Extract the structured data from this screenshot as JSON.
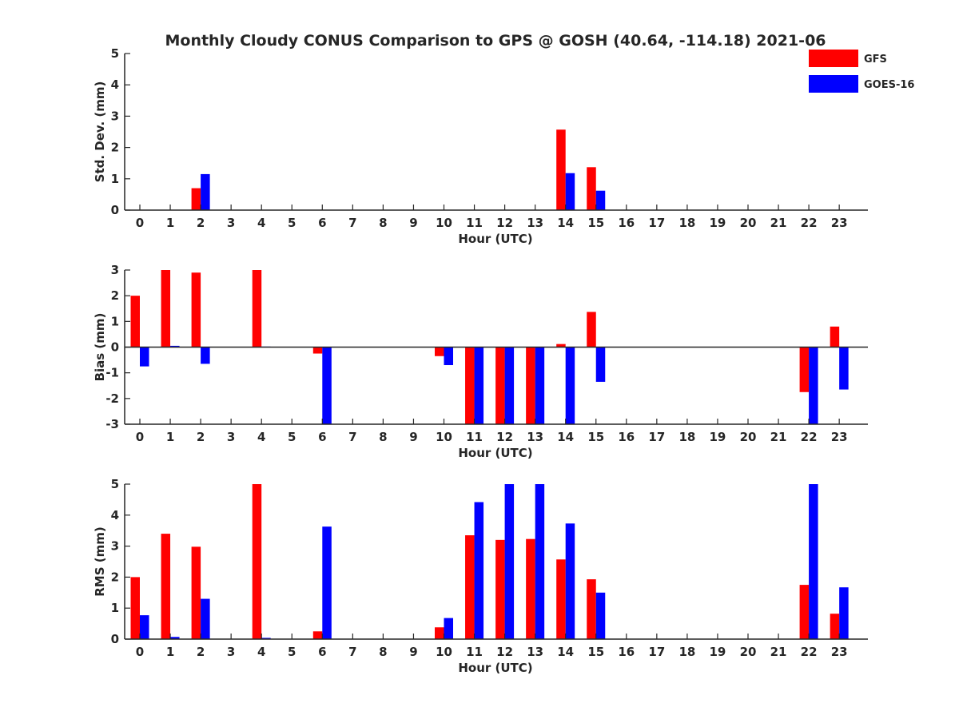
{
  "title": "Monthly Cloudy CONUS Comparison to GPS @ GOSH (40.64, -114.18) 2021-06",
  "colors": {
    "GFS": "#ff0000",
    "GOES-16": "#0000ff",
    "axis": "#262626"
  },
  "legend": {
    "placement": "top-right",
    "entries": [
      "GFS",
      "GOES-16"
    ]
  },
  "chart_data": [
    {
      "type": "bar",
      "ylabel": "Std. Dev. (mm)",
      "xlabel": "Hour (UTC)",
      "ylim": [
        0,
        5
      ],
      "yticks": [
        0,
        1,
        2,
        3,
        4,
        5
      ],
      "categories": [
        "0",
        "1",
        "2",
        "3",
        "4",
        "5",
        "6",
        "7",
        "8",
        "9",
        "10",
        "11",
        "12",
        "13",
        "14",
        "15",
        "16",
        "17",
        "18",
        "19",
        "20",
        "21",
        "22",
        "23"
      ],
      "series": [
        {
          "name": "GFS",
          "values": [
            0,
            0,
            0.7,
            0,
            0,
            0,
            0,
            0,
            0,
            0,
            0,
            0,
            0,
            0,
            2.57,
            1.37,
            0,
            0,
            0,
            0,
            0,
            0,
            0,
            0
          ]
        },
        {
          "name": "GOES-16",
          "values": [
            0,
            0,
            1.15,
            0,
            0,
            0,
            0,
            0,
            0,
            0,
            0,
            0,
            0,
            0,
            1.18,
            0.62,
            0,
            0,
            0,
            0,
            0,
            0,
            0,
            0
          ]
        }
      ]
    },
    {
      "type": "bar",
      "ylabel": "Bias (mm)",
      "xlabel": "Hour (UTC)",
      "ylim": [
        -3,
        3
      ],
      "yticks": [
        -3,
        -2,
        -1,
        0,
        1,
        2,
        3
      ],
      "categories": [
        "0",
        "1",
        "2",
        "3",
        "4",
        "5",
        "6",
        "7",
        "8",
        "9",
        "10",
        "11",
        "12",
        "13",
        "14",
        "15",
        "16",
        "17",
        "18",
        "19",
        "20",
        "21",
        "22",
        "23"
      ],
      "series": [
        {
          "name": "GFS",
          "values": [
            2.0,
            3.0,
            2.9,
            0,
            3.0,
            0,
            -0.25,
            0,
            0,
            0,
            -0.35,
            -3.0,
            -3.0,
            -3.0,
            0.12,
            1.37,
            0,
            0,
            0,
            0,
            0,
            0,
            -1.75,
            0.8
          ]
        },
        {
          "name": "GOES-16",
          "values": [
            -0.75,
            0.05,
            -0.65,
            0,
            0.02,
            0,
            -3.0,
            0,
            0,
            0,
            -0.7,
            -3.0,
            -3.0,
            -3.0,
            -3.0,
            -1.35,
            0,
            0,
            0,
            0,
            0,
            0,
            -3.0,
            -1.65
          ]
        }
      ]
    },
    {
      "type": "bar",
      "ylabel": "RMS (mm)",
      "xlabel": "Hour (UTC)",
      "ylim": [
        0,
        5
      ],
      "yticks": [
        0,
        1,
        2,
        3,
        4,
        5
      ],
      "categories": [
        "0",
        "1",
        "2",
        "3",
        "4",
        "5",
        "6",
        "7",
        "8",
        "9",
        "10",
        "11",
        "12",
        "13",
        "14",
        "15",
        "16",
        "17",
        "18",
        "19",
        "20",
        "21",
        "22",
        "23"
      ],
      "series": [
        {
          "name": "GFS",
          "values": [
            2.0,
            3.4,
            2.98,
            0,
            5.0,
            0,
            0.25,
            0,
            0,
            0,
            0.38,
            3.35,
            3.2,
            3.23,
            2.57,
            1.93,
            0,
            0,
            0,
            0,
            0,
            0,
            1.75,
            0.82
          ]
        },
        {
          "name": "GOES-16",
          "values": [
            0.77,
            0.07,
            1.3,
            0,
            0.04,
            0,
            3.63,
            0,
            0,
            0,
            0.68,
            4.42,
            5.0,
            5.0,
            3.73,
            1.5,
            0,
            0,
            0,
            0,
            0,
            0,
            5.0,
            1.67
          ]
        }
      ]
    }
  ]
}
